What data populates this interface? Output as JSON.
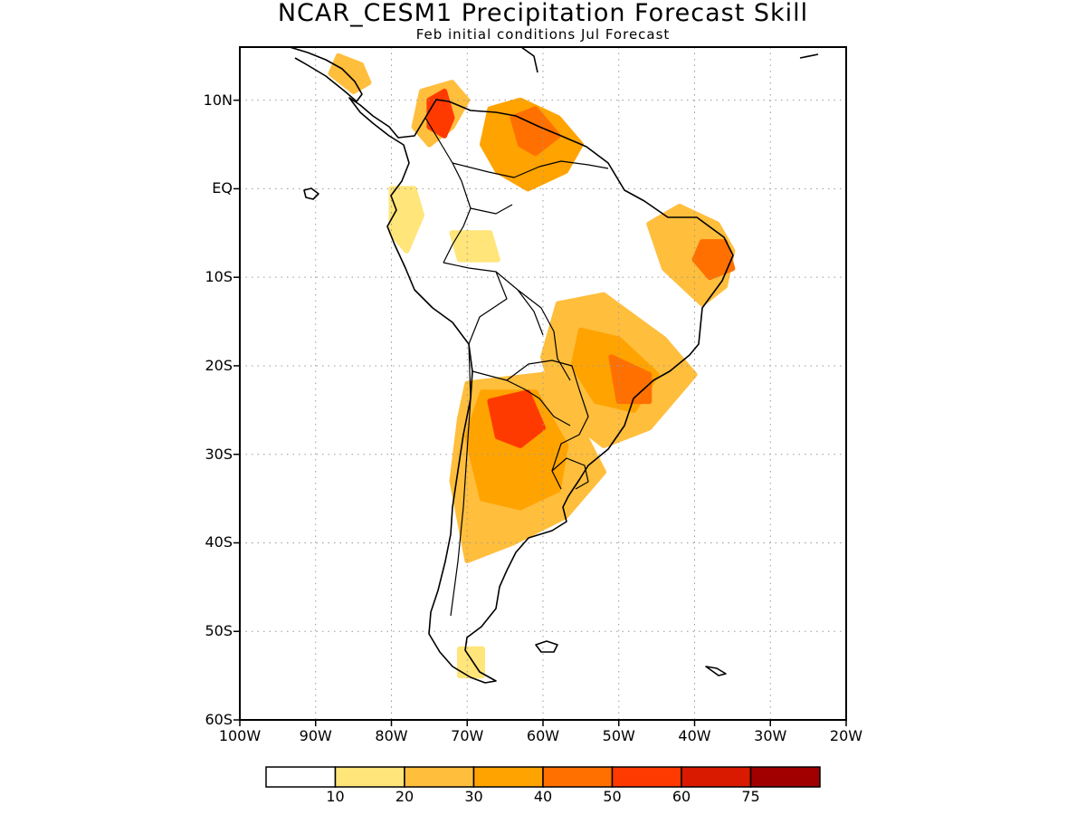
{
  "title": "NCAR_CESM1 Precipitation Forecast Skill",
  "subtitle": "Feb initial conditions  Jul Forecast",
  "map": {
    "lon_range": [
      -100,
      -20
    ],
    "lat_range": [
      -60,
      16
    ],
    "y_ticks": [
      {
        "lat": 10,
        "label": "10N"
      },
      {
        "lat": 0,
        "label": "EQ"
      },
      {
        "lat": -10,
        "label": "10S"
      },
      {
        "lat": -20,
        "label": "20S"
      },
      {
        "lat": -30,
        "label": "30S"
      },
      {
        "lat": -40,
        "label": "40S"
      },
      {
        "lat": -50,
        "label": "50S"
      },
      {
        "lat": -60,
        "label": "60S"
      }
    ],
    "x_ticks": [
      {
        "lon": -100,
        "label": "100W"
      },
      {
        "lon": -90,
        "label": "90W"
      },
      {
        "lon": -80,
        "label": "80W"
      },
      {
        "lon": -70,
        "label": "70W"
      },
      {
        "lon": -60,
        "label": "60W"
      },
      {
        "lon": -50,
        "label": "50W"
      },
      {
        "lon": -40,
        "label": "40W"
      },
      {
        "lon": -30,
        "label": "30W"
      },
      {
        "lon": -20,
        "label": "20W"
      }
    ],
    "gridlines": "dotted"
  },
  "colorbar": {
    "colors": [
      "#ffffff",
      "#ffe57a",
      "#ffbe3c",
      "#ffa300",
      "#ff7000",
      "#ff3a00",
      "#d91a00",
      "#a00000"
    ],
    "labels": [
      "10",
      "20",
      "30",
      "40",
      "50",
      "60",
      "75"
    ]
  },
  "skill_regions": [
    {
      "name": "central-america",
      "level": 2,
      "pts": [
        [
          -87,
          15
        ],
        [
          -84,
          14
        ],
        [
          -83,
          12
        ],
        [
          -85,
          11
        ],
        [
          -88,
          13
        ]
      ]
    },
    {
      "name": "colombia-north",
      "level": 2,
      "pts": [
        [
          -76,
          11
        ],
        [
          -72,
          12
        ],
        [
          -70,
          10
        ],
        [
          -72,
          7
        ],
        [
          -75,
          5
        ],
        [
          -77,
          7
        ]
      ]
    },
    {
      "name": "colombia-core",
      "level": 5,
      "pts": [
        [
          -75,
          10
        ],
        [
          -73,
          11
        ],
        [
          -72,
          8
        ],
        [
          -73,
          6
        ],
        [
          -75,
          7
        ]
      ]
    },
    {
      "name": "venezuela-guiana",
      "level": 3,
      "pts": [
        [
          -67,
          9
        ],
        [
          -63,
          10
        ],
        [
          -58,
          8
        ],
        [
          -55,
          5
        ],
        [
          -57,
          2
        ],
        [
          -62,
          0
        ],
        [
          -66,
          2
        ],
        [
          -68,
          5
        ]
      ]
    },
    {
      "name": "guiana-core",
      "level": 4,
      "pts": [
        [
          -64,
          8
        ],
        [
          -61,
          9
        ],
        [
          -58,
          6
        ],
        [
          -61,
          4
        ],
        [
          -63,
          5
        ]
      ]
    },
    {
      "name": "ecuador",
      "level": 1,
      "pts": [
        [
          -80,
          0
        ],
        [
          -77,
          0
        ],
        [
          -76,
          -3
        ],
        [
          -78,
          -7
        ],
        [
          -80,
          -5
        ]
      ]
    },
    {
      "name": "amazon-west",
      "level": 1,
      "pts": [
        [
          -72,
          -5
        ],
        [
          -67,
          -5
        ],
        [
          -66,
          -8
        ],
        [
          -71,
          -8
        ]
      ]
    },
    {
      "name": "ne-brazil",
      "level": 2,
      "pts": [
        [
          -42,
          -2
        ],
        [
          -37,
          -4
        ],
        [
          -35,
          -7
        ],
        [
          -36,
          -11
        ],
        [
          -39,
          -13
        ],
        [
          -44,
          -9
        ],
        [
          -46,
          -4
        ]
      ]
    },
    {
      "name": "ne-brazil-core",
      "level": 4,
      "pts": [
        [
          -39,
          -6
        ],
        [
          -36,
          -6
        ],
        [
          -35,
          -9
        ],
        [
          -38,
          -10
        ],
        [
          -40,
          -8
        ]
      ]
    },
    {
      "name": "central-brazil",
      "level": 2,
      "pts": [
        [
          -58,
          -13
        ],
        [
          -52,
          -12
        ],
        [
          -44,
          -17
        ],
        [
          -40,
          -21
        ],
        [
          -46,
          -27
        ],
        [
          -52,
          -29
        ],
        [
          -58,
          -25
        ],
        [
          -60,
          -19
        ]
      ]
    },
    {
      "name": "central-brazil-mid",
      "level": 3,
      "pts": [
        [
          -55,
          -16
        ],
        [
          -50,
          -17
        ],
        [
          -45,
          -21
        ],
        [
          -48,
          -25
        ],
        [
          -53,
          -24
        ],
        [
          -56,
          -20
        ]
      ]
    },
    {
      "name": "central-brazil-core",
      "level": 4,
      "pts": [
        [
          -51,
          -19
        ],
        [
          -46,
          -21
        ],
        [
          -46,
          -24
        ],
        [
          -50,
          -24
        ]
      ]
    },
    {
      "name": "chaco-argentina",
      "level": 2,
      "pts": [
        [
          -70,
          -22
        ],
        [
          -60,
          -21
        ],
        [
          -55,
          -27
        ],
        [
          -52,
          -32
        ],
        [
          -57,
          -37
        ],
        [
          -64,
          -40
        ],
        [
          -70,
          -42
        ],
        [
          -72,
          -33
        ],
        [
          -71,
          -26
        ]
      ]
    },
    {
      "name": "chaco-mid",
      "level": 3,
      "pts": [
        [
          -68,
          -23
        ],
        [
          -61,
          -23
        ],
        [
          -57,
          -29
        ],
        [
          -58,
          -34
        ],
        [
          -63,
          -36
        ],
        [
          -68,
          -35
        ],
        [
          -70,
          -28
        ]
      ]
    },
    {
      "name": "chaco-core",
      "level": 5,
      "pts": [
        [
          -67,
          -24
        ],
        [
          -62,
          -23
        ],
        [
          -60,
          -27
        ],
        [
          -63,
          -29
        ],
        [
          -66,
          -28
        ]
      ]
    },
    {
      "name": "patagonia-tip",
      "level": 1,
      "pts": [
        [
          -71,
          -52
        ],
        [
          -68,
          -52
        ],
        [
          -68,
          -55
        ],
        [
          -71,
          -55
        ]
      ]
    }
  ]
}
